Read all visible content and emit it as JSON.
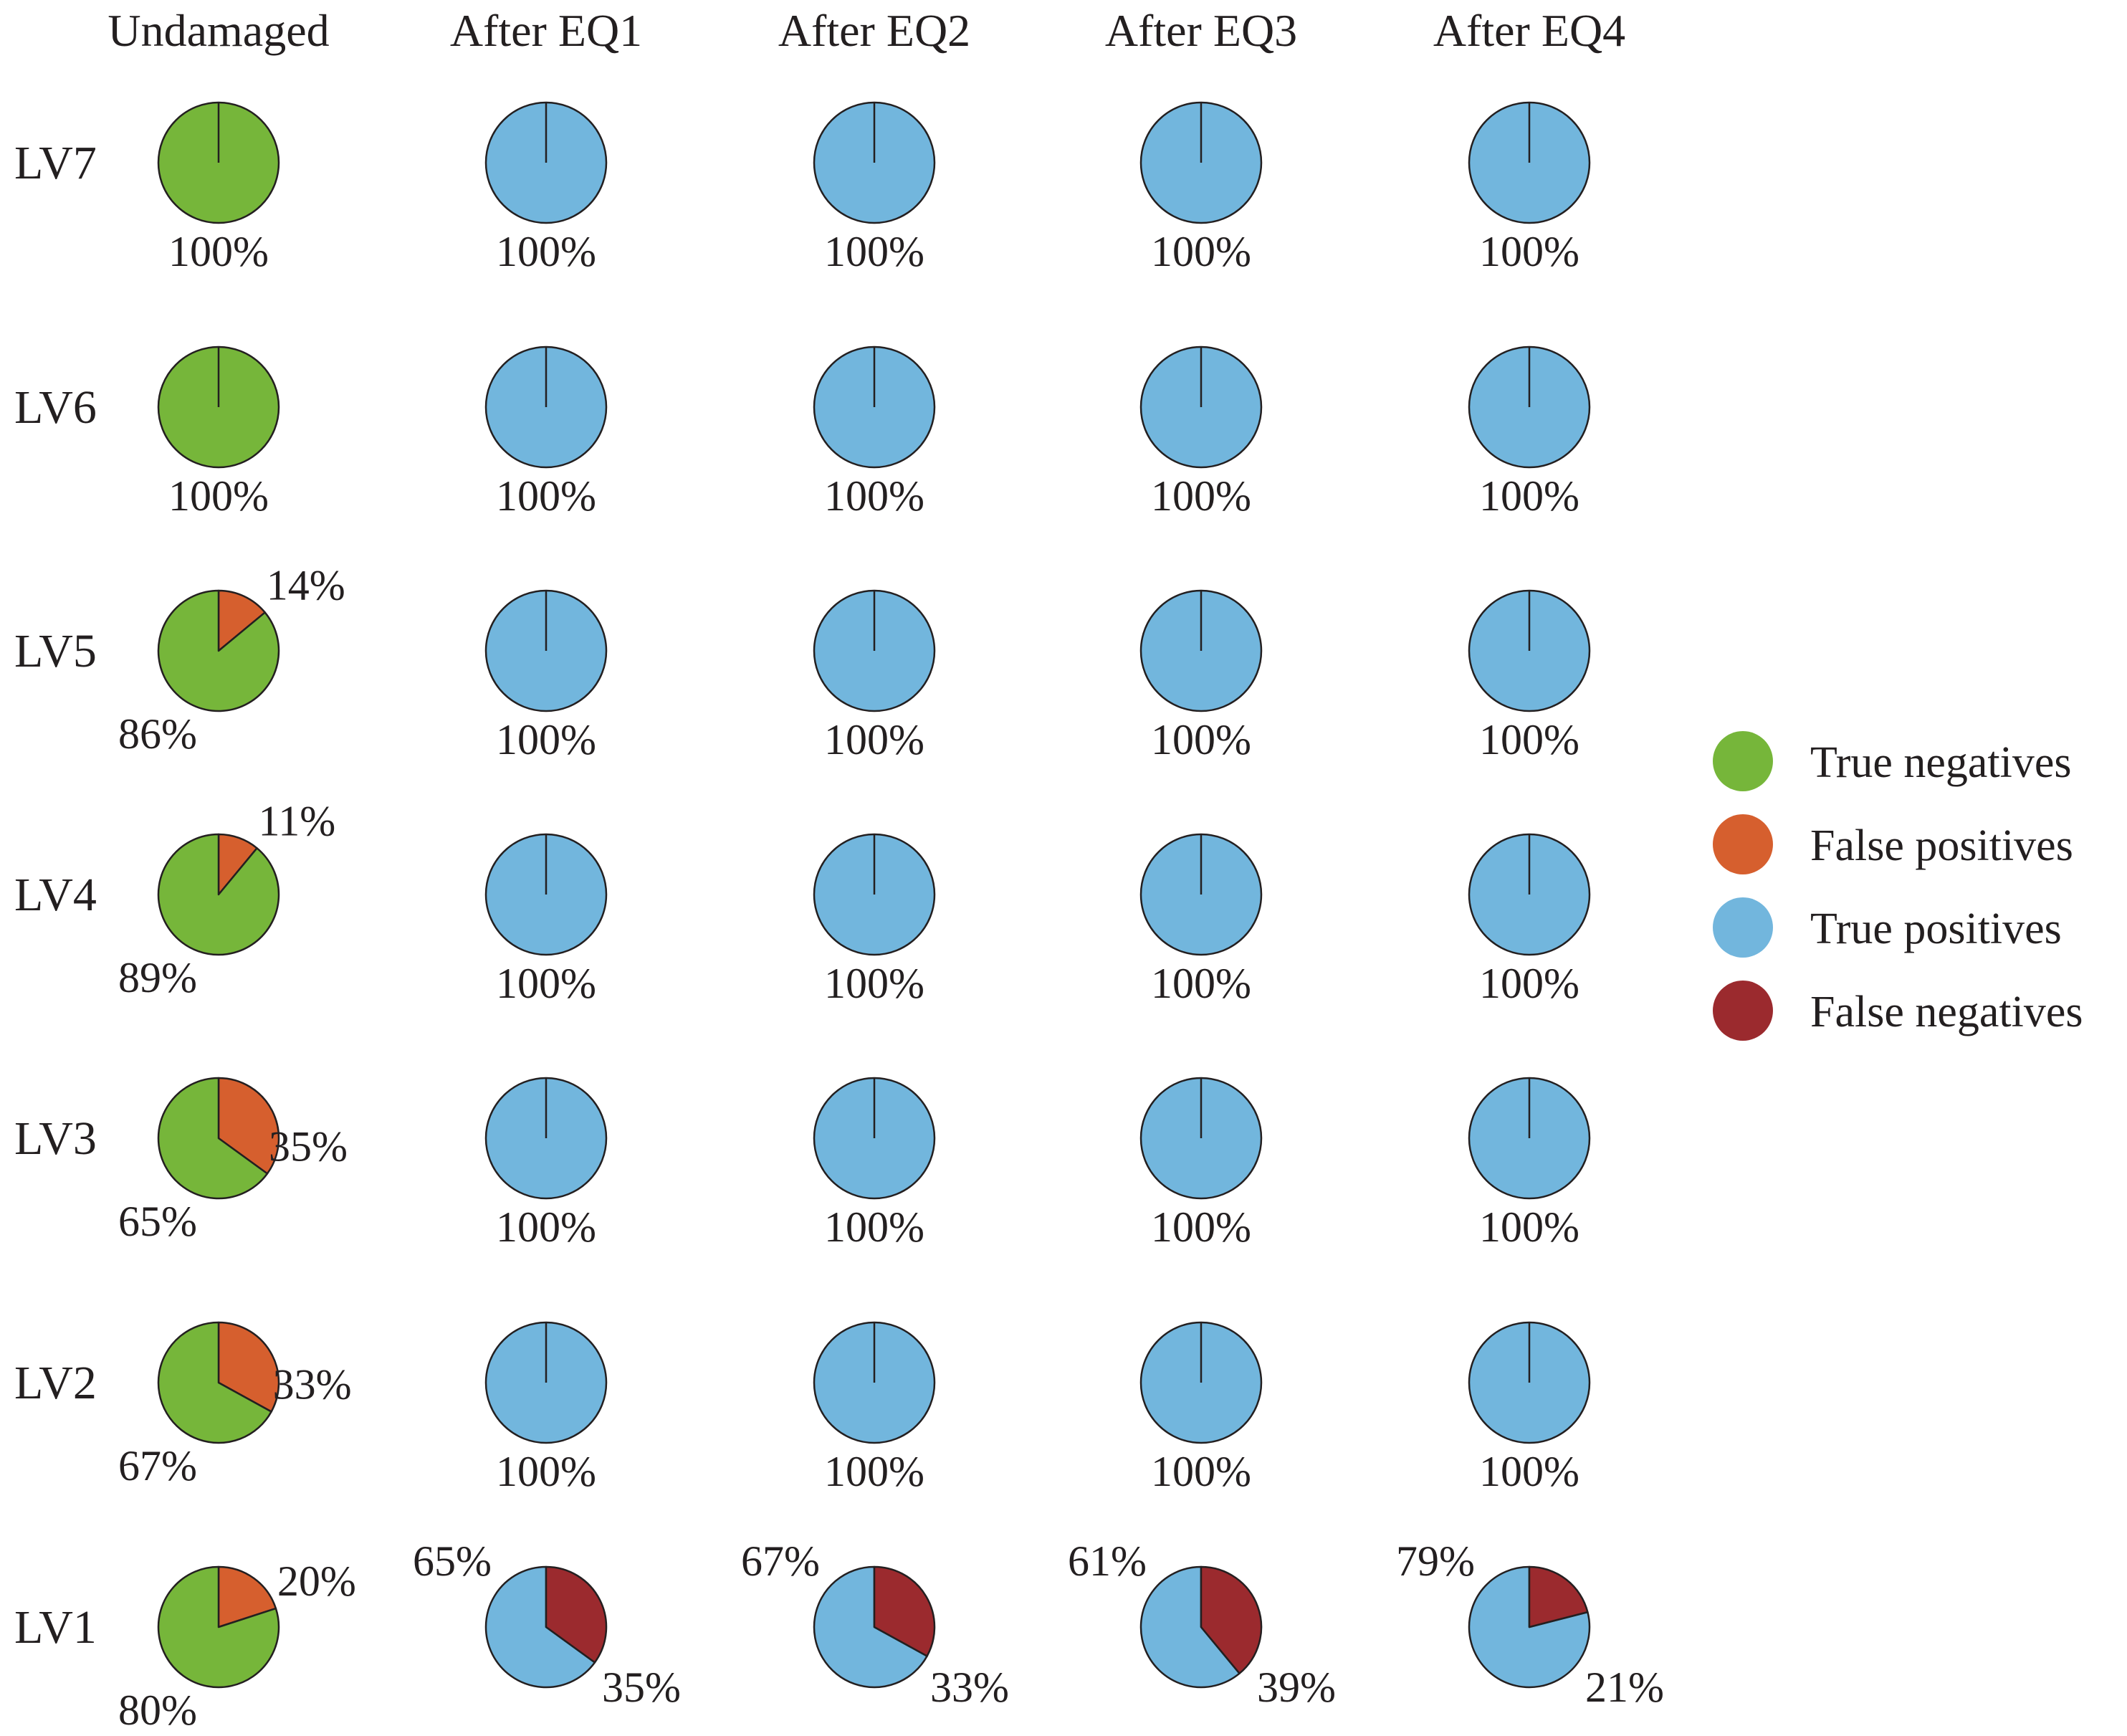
{
  "chart_data": {
    "type": "pie",
    "columns": [
      "Undamaged",
      "After EQ1",
      "After EQ2",
      "After EQ3",
      "After EQ4"
    ],
    "rows": [
      "LV7",
      "LV6",
      "LV5",
      "LV4",
      "LV3",
      "LV2",
      "LV1"
    ],
    "categories": {
      "tn": {
        "label": "True negatives",
        "color": "#76b63a"
      },
      "fp": {
        "label": "False positives",
        "color": "#d65f2e"
      },
      "tp": {
        "label": "True positives",
        "color": "#72b6dd"
      },
      "fn": {
        "label": "False negatives",
        "color": "#9b2a2e"
      }
    },
    "legend": [
      "tn",
      "fp",
      "tp",
      "fn"
    ],
    "cells": [
      [
        {
          "slices": [
            {
              "cat": "tn",
              "value": 100,
              "label": "100%"
            }
          ]
        },
        {
          "slices": [
            {
              "cat": "tp",
              "value": 100,
              "label": "100%"
            }
          ]
        },
        {
          "slices": [
            {
              "cat": "tp",
              "value": 100,
              "label": "100%"
            }
          ]
        },
        {
          "slices": [
            {
              "cat": "tp",
              "value": 100,
              "label": "100%"
            }
          ]
        },
        {
          "slices": [
            {
              "cat": "tp",
              "value": 100,
              "label": "100%"
            }
          ]
        }
      ],
      [
        {
          "slices": [
            {
              "cat": "tn",
              "value": 100,
              "label": "100%"
            }
          ]
        },
        {
          "slices": [
            {
              "cat": "tp",
              "value": 100,
              "label": "100%"
            }
          ]
        },
        {
          "slices": [
            {
              "cat": "tp",
              "value": 100,
              "label": "100%"
            }
          ]
        },
        {
          "slices": [
            {
              "cat": "tp",
              "value": 100,
              "label": "100%"
            }
          ]
        },
        {
          "slices": [
            {
              "cat": "tp",
              "value": 100,
              "label": "100%"
            }
          ]
        }
      ],
      [
        {
          "slices": [
            {
              "cat": "fp",
              "value": 14,
              "label": "14%"
            },
            {
              "cat": "tn",
              "value": 86,
              "label": "86%"
            }
          ]
        },
        {
          "slices": [
            {
              "cat": "tp",
              "value": 100,
              "label": "100%"
            }
          ]
        },
        {
          "slices": [
            {
              "cat": "tp",
              "value": 100,
              "label": "100%"
            }
          ]
        },
        {
          "slices": [
            {
              "cat": "tp",
              "value": 100,
              "label": "100%"
            }
          ]
        },
        {
          "slices": [
            {
              "cat": "tp",
              "value": 100,
              "label": "100%"
            }
          ]
        }
      ],
      [
        {
          "slices": [
            {
              "cat": "fp",
              "value": 11,
              "label": "11%"
            },
            {
              "cat": "tn",
              "value": 89,
              "label": "89%"
            }
          ]
        },
        {
          "slices": [
            {
              "cat": "tp",
              "value": 100,
              "label": "100%"
            }
          ]
        },
        {
          "slices": [
            {
              "cat": "tp",
              "value": 100,
              "label": "100%"
            }
          ]
        },
        {
          "slices": [
            {
              "cat": "tp",
              "value": 100,
              "label": "100%"
            }
          ]
        },
        {
          "slices": [
            {
              "cat": "tp",
              "value": 100,
              "label": "100%"
            }
          ]
        }
      ],
      [
        {
          "slices": [
            {
              "cat": "fp",
              "value": 35,
              "label": "35%"
            },
            {
              "cat": "tn",
              "value": 65,
              "label": "65%"
            }
          ]
        },
        {
          "slices": [
            {
              "cat": "tp",
              "value": 100,
              "label": "100%"
            }
          ]
        },
        {
          "slices": [
            {
              "cat": "tp",
              "value": 100,
              "label": "100%"
            }
          ]
        },
        {
          "slices": [
            {
              "cat": "tp",
              "value": 100,
              "label": "100%"
            }
          ]
        },
        {
          "slices": [
            {
              "cat": "tp",
              "value": 100,
              "label": "100%"
            }
          ]
        }
      ],
      [
        {
          "slices": [
            {
              "cat": "fp",
              "value": 33,
              "label": "33%"
            },
            {
              "cat": "tn",
              "value": 67,
              "label": "67%"
            }
          ]
        },
        {
          "slices": [
            {
              "cat": "tp",
              "value": 100,
              "label": "100%"
            }
          ]
        },
        {
          "slices": [
            {
              "cat": "tp",
              "value": 100,
              "label": "100%"
            }
          ]
        },
        {
          "slices": [
            {
              "cat": "tp",
              "value": 100,
              "label": "100%"
            }
          ]
        },
        {
          "slices": [
            {
              "cat": "tp",
              "value": 100,
              "label": "100%"
            }
          ]
        }
      ],
      [
        {
          "slices": [
            {
              "cat": "fp",
              "value": 20,
              "label": "20%"
            },
            {
              "cat": "tn",
              "value": 80,
              "label": "80%"
            }
          ]
        },
        {
          "slices": [
            {
              "cat": "tp",
              "value": 65,
              "label": "65%"
            },
            {
              "cat": "fn",
              "value": 35,
              "label": "35%"
            }
          ]
        },
        {
          "slices": [
            {
              "cat": "tp",
              "value": 67,
              "label": "67%"
            },
            {
              "cat": "fn",
              "value": 33,
              "label": "33%"
            }
          ]
        },
        {
          "slices": [
            {
              "cat": "tp",
              "value": 61,
              "label": "61%"
            },
            {
              "cat": "fn",
              "value": 39,
              "label": "39%"
            }
          ]
        },
        {
          "slices": [
            {
              "cat": "tp",
              "value": 79,
              "label": "79%"
            },
            {
              "cat": "fn",
              "value": 21,
              "label": "21%"
            }
          ]
        }
      ]
    ]
  }
}
